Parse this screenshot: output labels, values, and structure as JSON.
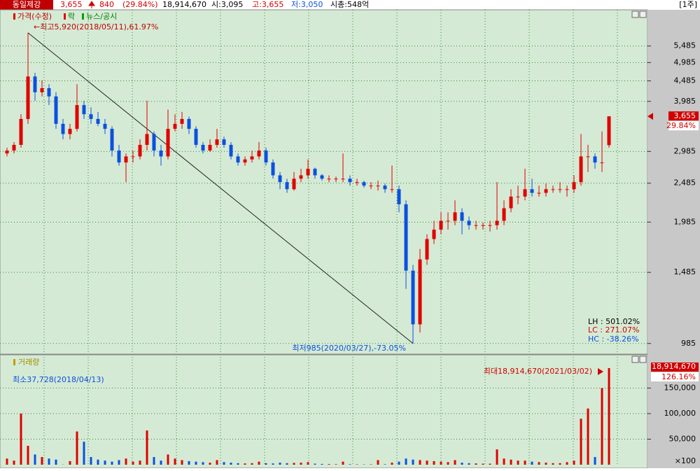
{
  "header": {
    "name": "동일제강",
    "price": "3,655",
    "change": "840",
    "change_pct": "(29.84%)",
    "volume": "18,914,670",
    "open": "시:3,095",
    "high": "고:3,655",
    "low": "저:3,050",
    "cap": "시총:548억",
    "period": "[1주]"
  },
  "chart_data": [
    {
      "type": "candlestick",
      "log": true,
      "grid": true,
      "legend": [
        "가격(수정)",
        "락",
        "뉴스/공시"
      ],
      "up_color": "#e00000",
      "down_color": "#0a50e0",
      "ylim": [
        930,
        6760
      ],
      "yticks": [
        985,
        {
          "value": 1485,
          "label": "1,485"
        },
        {
          "value": 1985,
          "label": "1,985"
        },
        {
          "value": 2485,
          "label": "2,485"
        },
        {
          "value": 2985,
          "label": "2,985"
        },
        {
          "value": 3985,
          "label": "3,985"
        },
        {
          "value": 4485,
          "label": "4,485"
        },
        {
          "value": 4985,
          "label": "4,985"
        },
        {
          "value": 5485,
          "label": "5,485"
        }
      ],
      "candles": [
        [
          2950,
          3050,
          2900,
          3000
        ],
        [
          3000,
          3150,
          2950,
          3100
        ],
        [
          3100,
          3700,
          3050,
          3600
        ],
        [
          3600,
          5920,
          3500,
          4600
        ],
        [
          4600,
          4700,
          4000,
          4200
        ],
        [
          4200,
          4500,
          4100,
          4300
        ],
        [
          4300,
          4400,
          3900,
          4100
        ],
        [
          4100,
          4200,
          3400,
          3500
        ],
        [
          3500,
          3600,
          3200,
          3300
        ],
        [
          3300,
          3500,
          3200,
          3400
        ],
        [
          3400,
          4400,
          3350,
          3900
        ],
        [
          3900,
          4000,
          3600,
          3700
        ],
        [
          3700,
          3850,
          3500,
          3600
        ],
        [
          3600,
          3750,
          3450,
          3500
        ],
        [
          3500,
          3600,
          3300,
          3400
        ],
        [
          3400,
          3450,
          2900,
          3000
        ],
        [
          3000,
          3100,
          2750,
          2800
        ],
        [
          2800,
          2950,
          2500,
          2900
        ],
        [
          2900,
          3000,
          2800,
          2900
        ],
        [
          2900,
          3200,
          2850,
          3100
        ],
        [
          3100,
          4000,
          3000,
          3300
        ],
        [
          3300,
          3350,
          2900,
          3000
        ],
        [
          3000,
          3100,
          2750,
          2900
        ],
        [
          2900,
          3800,
          2850,
          3400
        ],
        [
          3400,
          3700,
          3350,
          3500
        ],
        [
          3500,
          3750,
          3400,
          3600
        ],
        [
          3600,
          3650,
          3300,
          3400
        ],
        [
          3400,
          3450,
          3050,
          3100
        ],
        [
          3100,
          3150,
          2950,
          3000
        ],
        [
          3000,
          3200,
          2980,
          3100
        ],
        [
          3100,
          3400,
          3050,
          3200
        ],
        [
          3200,
          3250,
          3050,
          3100
        ],
        [
          3100,
          3150,
          2850,
          2900
        ],
        [
          2900,
          2950,
          2750,
          2800
        ],
        [
          2800,
          2900,
          2750,
          2850
        ],
        [
          2850,
          3000,
          2800,
          2900
        ],
        [
          2900,
          3150,
          2850,
          3000
        ],
        [
          3000,
          3050,
          2750,
          2800
        ],
        [
          2800,
          2850,
          2550,
          2600
        ],
        [
          2600,
          2650,
          2400,
          2500
        ],
        [
          2500,
          2550,
          2350,
          2400
        ],
        [
          2400,
          2650,
          2380,
          2550
        ],
        [
          2550,
          2700,
          2500,
          2600
        ],
        [
          2600,
          2850,
          2550,
          2700
        ],
        [
          2700,
          2720,
          2550,
          2600
        ],
        [
          2600,
          2620,
          2520,
          2550
        ],
        [
          2550,
          2600,
          2500,
          2550
        ],
        [
          2550,
          2580,
          2500,
          2550
        ],
        [
          2550,
          2950,
          2500,
          2550
        ],
        [
          2550,
          2600,
          2450,
          2500
        ],
        [
          2500,
          2550,
          2450,
          2500
        ],
        [
          2500,
          2520,
          2420,
          2450
        ],
        [
          2450,
          2500,
          2400,
          2450
        ],
        [
          2450,
          2520,
          2380,
          2450
        ],
        [
          2450,
          2480,
          2350,
          2400
        ],
        [
          2400,
          2750,
          2350,
          2400
        ],
        [
          2400,
          2450,
          2100,
          2200
        ],
        [
          2200,
          2250,
          1350,
          1500
        ],
        [
          1500,
          1550,
          985,
          1100
        ],
        [
          1100,
          1700,
          1050,
          1600
        ],
        [
          1600,
          1850,
          1550,
          1800
        ],
        [
          1800,
          2000,
          1750,
          1900
        ],
        [
          1900,
          2100,
          1850,
          2000
        ],
        [
          2000,
          2100,
          1900,
          2000
        ],
        [
          2000,
          2250,
          1950,
          2100
        ],
        [
          2100,
          2150,
          1850,
          2000
        ],
        [
          2000,
          2050,
          1900,
          1950
        ],
        [
          1950,
          2000,
          1900,
          1950
        ],
        [
          1950,
          1980,
          1900,
          1950
        ],
        [
          1950,
          2000,
          1880,
          1950
        ],
        [
          1950,
          2500,
          1900,
          2000
        ],
        [
          2000,
          2250,
          1950,
          2150
        ],
        [
          2150,
          2400,
          2100,
          2300
        ],
        [
          2300,
          2450,
          2200,
          2300
        ],
        [
          2300,
          2700,
          2250,
          2400
        ],
        [
          2400,
          2550,
          2300,
          2350
        ],
        [
          2350,
          2450,
          2300,
          2350
        ],
        [
          2350,
          2480,
          2300,
          2400
        ],
        [
          2400,
          2450,
          2350,
          2400
        ],
        [
          2400,
          2500,
          2350,
          2400
        ],
        [
          2400,
          2450,
          2300,
          2400
        ],
        [
          2400,
          2600,
          2350,
          2500
        ],
        [
          2500,
          3300,
          2450,
          2900
        ],
        [
          2900,
          3100,
          2650,
          2900
        ],
        [
          2900,
          2950,
          2700,
          2800
        ],
        [
          2800,
          3350,
          2650,
          2800
        ],
        [
          3095,
          3655,
          3050,
          3655
        ]
      ],
      "annotations": {
        "high": "←최고5,920(2018/05/11),61.97%",
        "low": "최저985(2020/03/27),-73.05%",
        "stats": [
          "LH :  501.02%",
          "LC :  271.07%",
          "HC : -38.26%"
        ]
      },
      "last_price": {
        "value": 3655,
        "label": "3,655"
      },
      "last_change": "29.84%"
    },
    {
      "type": "bar",
      "legend": "거래량",
      "unit": "×100",
      "grid": true,
      "ylim": [
        0,
        211000
      ],
      "yticks": [
        {
          "value": 50000,
          "label": "50,000"
        },
        {
          "value": 100000,
          "label": "100,000"
        },
        {
          "value": 150000,
          "label": "150,000"
        }
      ],
      "values": [
        12000,
        8000,
        100000,
        37000,
        20000,
        15000,
        12000,
        10000,
        377,
        7000,
        65000,
        45000,
        15000,
        10000,
        8000,
        6000,
        9000,
        12000,
        6000,
        8000,
        67000,
        15000,
        8000,
        20000,
        12000,
        9000,
        7000,
        6000,
        5000,
        4000,
        9000,
        5000,
        4000,
        3000,
        2500,
        3000,
        6000,
        3000,
        2500,
        4000,
        3000,
        3500,
        4000,
        5000,
        2000,
        1500,
        1200,
        1000,
        6000,
        1000,
        800,
        600,
        700,
        9000,
        900,
        4000,
        6000,
        12000,
        10000,
        9000,
        8000,
        7000,
        6000,
        5000,
        9000,
        4000,
        3000,
        2500,
        2000,
        2000,
        30000,
        12000,
        10000,
        8000,
        8000,
        6000,
        5000,
        4000,
        3000,
        3000,
        5000,
        8000,
        90000,
        110000,
        15000,
        150000,
        189146.7
      ],
      "annotations": {
        "max": "최대18,914,670(2021/03/02)",
        "min": "최소37,728(2018/04/13)"
      },
      "last_value": {
        "value": 189146.7,
        "label": "18,914,670"
      },
      "last_change": "126.16%"
    }
  ]
}
